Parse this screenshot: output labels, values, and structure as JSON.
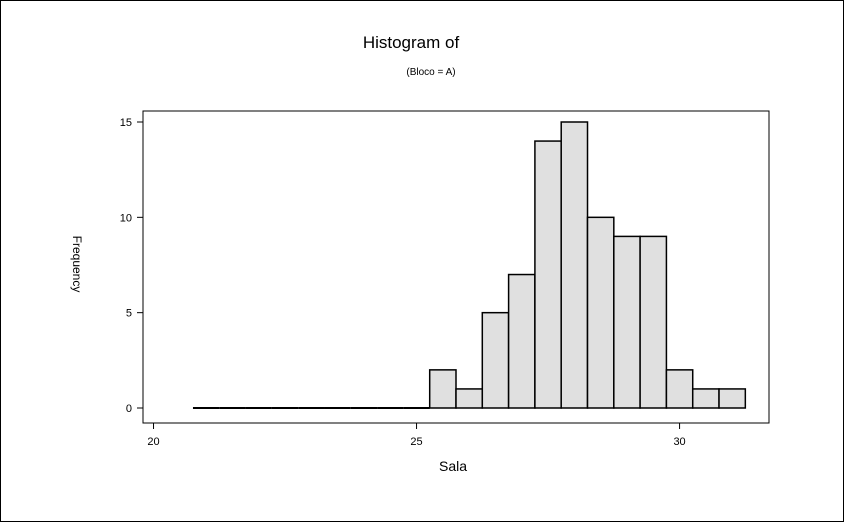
{
  "chart_data": {
    "type": "bar",
    "title": "Histogram of",
    "subtitle": "(Bloco = A)",
    "xlabel": "Sala",
    "ylabel": "Frequency",
    "x_ticks": [
      "20",
      "25",
      "30"
    ],
    "y_ticks": [
      "0",
      "5",
      "10",
      "15"
    ],
    "xlim": [
      19.8,
      31.7
    ],
    "ylim": [
      0,
      15.5
    ],
    "bin_width": 0.5,
    "bin_starts": [
      20.75,
      21.25,
      21.75,
      22.25,
      22.75,
      23.25,
      23.75,
      24.25,
      24.75,
      25.25,
      25.75,
      26.25,
      26.75,
      27.25,
      27.75,
      28.25,
      28.75,
      29.25,
      29.75,
      30.25,
      30.75
    ],
    "values": [
      0,
      0,
      0,
      0,
      0,
      0,
      0,
      0,
      0,
      2,
      1,
      5,
      7,
      14,
      15,
      10,
      9,
      9,
      2,
      1,
      1
    ],
    "bar_color": "#e0e0e0",
    "edge_color": "#000000"
  }
}
